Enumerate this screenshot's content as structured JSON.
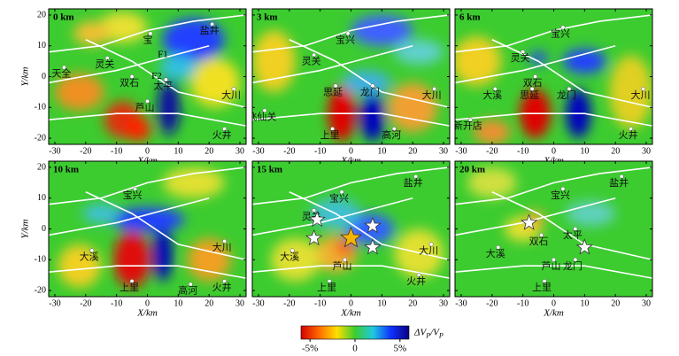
{
  "panels": [
    {
      "label": "0 km",
      "places": [
        {
          "name": "盐井",
          "x": 21,
          "y": 17
        },
        {
          "name": "宝",
          "x": 1,
          "y": 14
        },
        {
          "name": "灵关",
          "x": -13,
          "y": 6
        },
        {
          "name": "天全",
          "x": -27,
          "y": 3
        },
        {
          "name": "双石",
          "x": -5,
          "y": 0
        },
        {
          "name": "太平",
          "x": 6,
          "y": -1
        },
        {
          "name": "芦山",
          "x": 0,
          "y": -8
        },
        {
          "name": "大川",
          "x": 28,
          "y": -4
        },
        {
          "name": "火井",
          "x": 25,
          "y": -17
        }
      ],
      "annotations": [
        {
          "text": "F1",
          "x": 5,
          "y": 7
        },
        {
          "text": "F2",
          "x": 3,
          "y": 0
        }
      ],
      "stars": []
    },
    {
      "label": "3 km",
      "places": [
        {
          "name": "宝兴",
          "x": -1,
          "y": 14
        },
        {
          "name": "灵关",
          "x": -12,
          "y": 7
        },
        {
          "name": "飞仙关",
          "x": -28,
          "y": -11
        },
        {
          "name": "思延",
          "x": -5,
          "y": -3
        },
        {
          "name": "龙门",
          "x": 7,
          "y": -3
        },
        {
          "name": "大川",
          "x": 27,
          "y": -4
        },
        {
          "name": "上里",
          "x": -6,
          "y": -17
        },
        {
          "name": "高河",
          "x": 14,
          "y": -17
        }
      ],
      "annotations": [],
      "stars": []
    },
    {
      "label": "6 km",
      "places": [
        {
          "name": "宝兴",
          "x": 3,
          "y": 16
        },
        {
          "name": "灵关",
          "x": -10,
          "y": 8
        },
        {
          "name": "双石",
          "x": -6,
          "y": 0
        },
        {
          "name": "大溪",
          "x": -19,
          "y": -4
        },
        {
          "name": "思延",
          "x": -7,
          "y": -4
        },
        {
          "name": "龙门",
          "x": 5,
          "y": -4
        },
        {
          "name": "大川",
          "x": 29,
          "y": -4
        },
        {
          "name": "新开店",
          "x": -27,
          "y": -14
        },
        {
          "name": "火井",
          "x": 25,
          "y": -17
        }
      ],
      "annotations": [],
      "stars": []
    },
    {
      "label": "10 km",
      "places": [
        {
          "name": "宝兴",
          "x": -4,
          "y": 13
        },
        {
          "name": "大川",
          "x": 25,
          "y": -4
        },
        {
          "name": "大溪",
          "x": -18,
          "y": -7
        },
        {
          "name": "上里",
          "x": -5,
          "y": -17
        },
        {
          "name": "高河",
          "x": 14,
          "y": -18
        },
        {
          "name": "火井",
          "x": 25,
          "y": -17
        }
      ],
      "annotations": [],
      "stars": []
    },
    {
      "label": "15 km",
      "places": [
        {
          "name": "盐井",
          "x": 21,
          "y": 17
        },
        {
          "name": "宝兴",
          "x": -3,
          "y": 12
        },
        {
          "name": "灵关",
          "x": -12,
          "y": 6
        },
        {
          "name": "大溪",
          "x": -19,
          "y": -7
        },
        {
          "name": "芦山",
          "x": -2,
          "y": -10
        },
        {
          "name": "大川",
          "x": 26,
          "y": -5
        },
        {
          "name": "火井",
          "x": 22,
          "y": -15
        },
        {
          "name": "上里",
          "x": -7,
          "y": -17
        }
      ],
      "annotations": [],
      "stars": [
        {
          "x": -11,
          "y": 3,
          "color": "#ffffff"
        },
        {
          "x": -12,
          "y": -3,
          "color": "#ffffff"
        },
        {
          "x": 7,
          "y": 1,
          "color": "#ffffff"
        },
        {
          "x": 7,
          "y": -6,
          "color": "#ffffff"
        },
        {
          "x": 0,
          "y": -3,
          "color": "#f5b400"
        }
      ]
    },
    {
      "label": "20 km",
      "places": [
        {
          "name": "盐井",
          "x": 22,
          "y": 17
        },
        {
          "name": "宝兴",
          "x": 3,
          "y": 13
        },
        {
          "name": "双石",
          "x": -4,
          "y": -2
        },
        {
          "name": "太平",
          "x": 7,
          "y": 0
        },
        {
          "name": "大溪",
          "x": -18,
          "y": -6
        },
        {
          "name": "芦山",
          "x": 0,
          "y": -10
        },
        {
          "name": "龙门",
          "x": 7,
          "y": -10
        },
        {
          "name": "上里",
          "x": -3,
          "y": -17
        }
      ],
      "annotations": [],
      "stars": [
        {
          "x": -8,
          "y": 2,
          "color": "#ffffff"
        },
        {
          "x": 10,
          "y": -6,
          "color": "#ffffff"
        }
      ]
    }
  ],
  "x_axis": {
    "label": "X/km",
    "lim": [
      -32,
      32
    ],
    "ticks": [
      -30,
      -20,
      -10,
      0,
      10,
      20,
      30
    ]
  },
  "y_axis": {
    "label": "Y/km",
    "lim": [
      -22,
      22
    ],
    "ticks": [
      -20,
      -10,
      0,
      10,
      20
    ]
  },
  "colorbar": {
    "label": [
      "ΔV",
      "P",
      "/V",
      "P"
    ],
    "lim": [
      -6,
      6
    ],
    "ticks": [
      {
        "value": -5,
        "label": "-5%"
      },
      0,
      {
        "value": 5,
        "label": "5%"
      }
    ],
    "colors": [
      "#d40000",
      "#ff6a00",
      "#ffe000",
      "#3ccc30",
      "#20c8e0",
      "#1030ff",
      "#0a0080"
    ]
  }
}
